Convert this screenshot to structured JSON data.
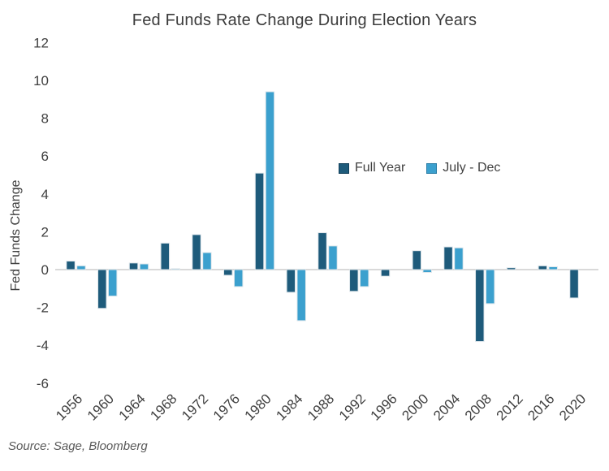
{
  "title": "Fed Funds Rate Change During Election Years",
  "source": "Source: Sage, Bloomberg",
  "legend": {
    "full_year_label": "Full Year",
    "july_dec_label": "July - Dec"
  },
  "colors": {
    "full_year": "#1E5B7B",
    "july_dec": "#3BA0CE",
    "zero_line": "#D9D9D9",
    "axis_text": "#404040",
    "title_text": "#3B3B3B",
    "source_text": "#595959",
    "bar_edge": "#DFE7EC"
  },
  "chart_data": {
    "type": "bar",
    "title": "Fed Funds Rate Change During Election Years",
    "xlabel": "",
    "ylabel": "Fed Funds Change",
    "ylim": [
      -6,
      12
    ],
    "yticks": [
      12,
      10,
      8,
      6,
      4,
      2,
      0,
      -2,
      -4,
      -6
    ],
    "grid": false,
    "legend_position": "inside-upper-middle",
    "categories": [
      "1956",
      "1960",
      "1964",
      "1968",
      "1972",
      "1976",
      "1980",
      "1984",
      "1988",
      "1992",
      "1996",
      "2000",
      "2004",
      "2008",
      "2012",
      "2016",
      "2020"
    ],
    "series": [
      {
        "name": "Full Year",
        "color": "#1E5B7B",
        "values": [
          0.45,
          -2.05,
          0.35,
          1.4,
          1.85,
          -0.3,
          5.1,
          -1.2,
          1.95,
          -1.15,
          -0.35,
          1.0,
          1.2,
          -3.8,
          0.1,
          0.2,
          -1.5
        ]
      },
      {
        "name": "July - Dec",
        "color": "#3BA0CE",
        "values": [
          0.2,
          -1.4,
          0.3,
          0.05,
          0.9,
          -0.9,
          9.4,
          -2.7,
          1.25,
          -0.9,
          0,
          -0.15,
          1.15,
          -1.8,
          0,
          0.15,
          0
        ]
      }
    ]
  }
}
